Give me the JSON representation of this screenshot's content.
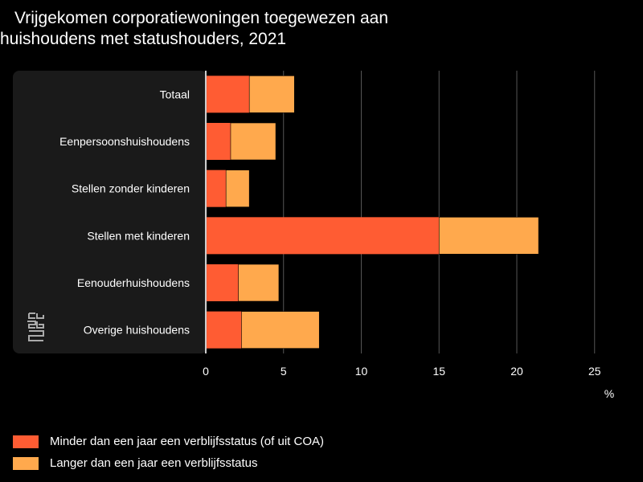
{
  "title": {
    "line1": "Vrijgekomen corporatiewoningen toegewezen aan",
    "line2": "huishoudens met statushouders, 2021"
  },
  "logo": {
    "icon": "cbs-logo-icon"
  },
  "chart_data": {
    "type": "bar",
    "orientation": "horizontal",
    "stacked": true,
    "title": "Vrijgekomen corporatiewoningen toegewezen aan huishoudens met statushouders, 2021",
    "categories": [
      "Totaal",
      "Eenpersoonshuishoudens",
      "Stellen zonder kinderen",
      "Stellen met kinderen",
      "Eenouderhuishoudens",
      "Overige huishoudens"
    ],
    "series": [
      {
        "name": "Minder dan een jaar een verblijfsstatus (of uit COA)",
        "color": "#ff5c33",
        "values": [
          2.8,
          1.6,
          1.3,
          15.0,
          2.1,
          2.3
        ]
      },
      {
        "name": "Langer dan een jaar een verblijfsstatus",
        "color": "#ffa94d",
        "values": [
          2.9,
          2.9,
          1.5,
          6.4,
          2.6,
          5.0
        ]
      }
    ],
    "xlim": [
      0,
      25
    ],
    "xticks": [
      0,
      5,
      10,
      15,
      20,
      25
    ],
    "xlabel": "%",
    "grid": true,
    "legend": "bottom-left"
  },
  "colors": {
    "background": "#000000",
    "panel": "#1a1a1a",
    "grid": "#555555",
    "axis": "#cccccc"
  }
}
